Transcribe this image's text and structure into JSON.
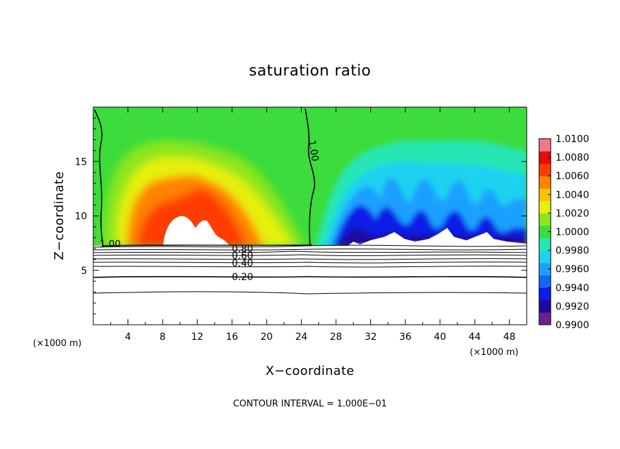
{
  "chart_data": {
    "type": "heatmap",
    "title": "saturation ratio",
    "xlabel": "X−coordinate",
    "ylabel": "Z−coordinate",
    "x_unit_left": "(×1000 m)",
    "x_unit_right": "(×1000 m)",
    "xlim": [
      0,
      50
    ],
    "ylim": [
      0,
      20
    ],
    "x_ticks": [
      4,
      8,
      12,
      16,
      20,
      24,
      28,
      32,
      36,
      40,
      44,
      48
    ],
    "y_ticks": [
      5,
      10,
      15
    ],
    "colorbar": {
      "min": 0.99,
      "max": 1.01,
      "tick_labels": [
        "0.9900",
        "0.9920",
        "0.9940",
        "0.9960",
        "0.9980",
        "1.0000",
        "1.0020",
        "1.0040",
        "1.0060",
        "1.0080",
        "1.0100"
      ],
      "colors": [
        "#6e1e8c",
        "#1e0aa0",
        "#0a1ee6",
        "#1466f5",
        "#1ea0ff",
        "#1ed2f0",
        "#28e6b4",
        "#3cdc3c",
        "#8ce61e",
        "#e6f00a",
        "#ffc300",
        "#ff8200",
        "#ff3c00",
        "#e60a0a",
        "#f07888"
      ]
    },
    "contour_labels": [
      "1.00",
      "1.00",
      "0.80",
      "0.60",
      "0.40",
      "0.20"
    ],
    "footer": "CONTOUR INTERVAL = 1.000E−01"
  }
}
